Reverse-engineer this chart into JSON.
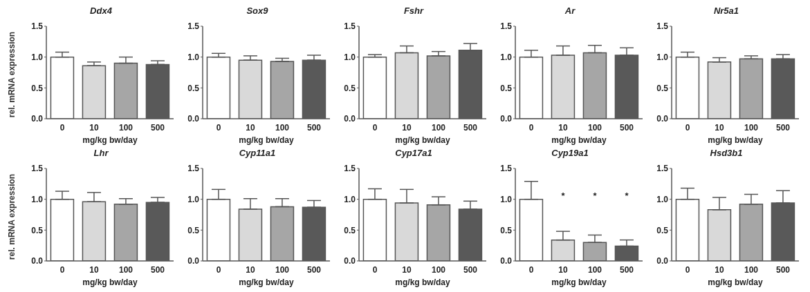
{
  "chart_data": [
    {
      "type": "bar",
      "title": "Ddx4",
      "categories": [
        "0",
        "10",
        "100",
        "500"
      ],
      "values": [
        1.0,
        0.86,
        0.9,
        0.88
      ],
      "errors": [
        [
          1.0,
          1.08
        ],
        [
          0.86,
          0.92
        ],
        [
          0.9,
          1.0
        ],
        [
          0.88,
          0.94
        ]
      ],
      "colors": [
        "#ffffff",
        "#d9d9d9",
        "#a6a6a6",
        "#595959"
      ],
      "ylim": [
        0,
        1.5
      ],
      "yticks": [
        {
          "value": 0,
          "label": "0.0"
        },
        {
          "value": 0.5,
          "label": "0.5"
        },
        {
          "value": 1,
          "label": "1.0"
        },
        {
          "value": 1.5,
          "label": "1.5"
        }
      ],
      "xlabel": "mg/kg bw/day",
      "ylabel": "rel. mRNA expression"
    },
    {
      "type": "bar",
      "title": "Sox9",
      "categories": [
        "0",
        "10",
        "100",
        "500"
      ],
      "values": [
        1.0,
        0.95,
        0.93,
        0.95
      ],
      "errors": [
        [
          1.0,
          1.06
        ],
        [
          0.95,
          1.02
        ],
        [
          0.93,
          0.98
        ],
        [
          0.95,
          1.03
        ]
      ],
      "colors": [
        "#ffffff",
        "#d9d9d9",
        "#a6a6a6",
        "#595959"
      ],
      "ylim": [
        0,
        1.5
      ],
      "yticks": [
        {
          "value": 0,
          "label": "0.0"
        },
        {
          "value": 0.5,
          "label": "0.5"
        },
        {
          "value": 1,
          "label": "1.0"
        },
        {
          "value": 1.5,
          "label": "1.5"
        }
      ],
      "xlabel": "mg/kg bw/day"
    },
    {
      "type": "bar",
      "title": "Fshr",
      "categories": [
        "0",
        "10",
        "100",
        "500"
      ],
      "values": [
        1.0,
        1.07,
        1.02,
        1.11
      ],
      "errors": [
        [
          1.0,
          1.04
        ],
        [
          1.07,
          1.18
        ],
        [
          1.02,
          1.09
        ],
        [
          1.11,
          1.22
        ]
      ],
      "colors": [
        "#ffffff",
        "#d9d9d9",
        "#a6a6a6",
        "#595959"
      ],
      "ylim": [
        0,
        1.5
      ],
      "yticks": [
        {
          "value": 0,
          "label": "0.0"
        },
        {
          "value": 0.5,
          "label": "0.5"
        },
        {
          "value": 1,
          "label": "1.0"
        },
        {
          "value": 1.5,
          "label": "1.5"
        }
      ],
      "xlabel": "mg/kg bw/day"
    },
    {
      "type": "bar",
      "title": "Ar",
      "categories": [
        "0",
        "10",
        "100",
        "500"
      ],
      "values": [
        1.0,
        1.03,
        1.07,
        1.03
      ],
      "errors": [
        [
          1.0,
          1.11
        ],
        [
          1.03,
          1.18
        ],
        [
          1.07,
          1.19
        ],
        [
          1.03,
          1.15
        ]
      ],
      "colors": [
        "#ffffff",
        "#d9d9d9",
        "#a6a6a6",
        "#595959"
      ],
      "ylim": [
        0,
        1.5
      ],
      "yticks": [
        {
          "value": 0,
          "label": "0.0"
        },
        {
          "value": 0.5,
          "label": "0.5"
        },
        {
          "value": 1,
          "label": "1.0"
        },
        {
          "value": 1.5,
          "label": "1.5"
        }
      ],
      "xlabel": "mg/kg bw/day"
    },
    {
      "type": "bar",
      "title": "Nr5a1",
      "categories": [
        "0",
        "10",
        "100",
        "500"
      ],
      "values": [
        1.0,
        0.92,
        0.97,
        0.97
      ],
      "errors": [
        [
          1.0,
          1.08
        ],
        [
          0.92,
          0.99
        ],
        [
          0.97,
          1.02
        ],
        [
          0.97,
          1.04
        ]
      ],
      "colors": [
        "#ffffff",
        "#d9d9d9",
        "#a6a6a6",
        "#595959"
      ],
      "ylim": [
        0,
        1.5
      ],
      "yticks": [
        {
          "value": 0,
          "label": "0.0"
        },
        {
          "value": 0.5,
          "label": "0.5"
        },
        {
          "value": 1,
          "label": "1.0"
        },
        {
          "value": 1.5,
          "label": "1.5"
        }
      ],
      "xlabel": "mg/kg bw/day"
    },
    {
      "type": "bar",
      "title": "Lhr",
      "categories": [
        "0",
        "10",
        "100",
        "500"
      ],
      "values": [
        1.0,
        0.96,
        0.92,
        0.95
      ],
      "errors": [
        [
          1.0,
          1.13
        ],
        [
          0.96,
          1.11
        ],
        [
          0.92,
          1.01
        ],
        [
          0.95,
          1.03
        ]
      ],
      "colors": [
        "#ffffff",
        "#d9d9d9",
        "#a6a6a6",
        "#595959"
      ],
      "ylim": [
        0,
        1.5
      ],
      "yticks": [
        {
          "value": 0,
          "label": "0.0"
        },
        {
          "value": 0.5,
          "label": "0.5"
        },
        {
          "value": 1,
          "label": "1.0"
        },
        {
          "value": 1.5,
          "label": "1.5"
        }
      ],
      "xlabel": "mg/kg bw/day",
      "ylabel": "rel. mRNA expression"
    },
    {
      "type": "bar",
      "title": "Cyp11a1",
      "categories": [
        "0",
        "10",
        "100",
        "500"
      ],
      "values": [
        1.0,
        0.84,
        0.88,
        0.87
      ],
      "errors": [
        [
          1.0,
          1.16
        ],
        [
          0.84,
          1.01
        ],
        [
          0.88,
          1.01
        ],
        [
          0.87,
          0.98
        ]
      ],
      "colors": [
        "#ffffff",
        "#d9d9d9",
        "#a6a6a6",
        "#595959"
      ],
      "ylim": [
        0,
        1.5
      ],
      "yticks": [
        {
          "value": 0,
          "label": "0.0"
        },
        {
          "value": 0.5,
          "label": "0.5"
        },
        {
          "value": 1,
          "label": "1.0"
        },
        {
          "value": 1.5,
          "label": "1.5"
        }
      ],
      "xlabel": "mg/kg bw/day"
    },
    {
      "type": "bar",
      "title": "Cyp17a1",
      "categories": [
        "0",
        "10",
        "100",
        "500"
      ],
      "values": [
        1.0,
        0.94,
        0.91,
        0.84
      ],
      "errors": [
        [
          1.0,
          1.17
        ],
        [
          0.94,
          1.16
        ],
        [
          0.91,
          1.04
        ],
        [
          0.84,
          0.97
        ]
      ],
      "colors": [
        "#ffffff",
        "#d9d9d9",
        "#a6a6a6",
        "#595959"
      ],
      "ylim": [
        0,
        1.5
      ],
      "yticks": [
        {
          "value": 0,
          "label": "0.0"
        },
        {
          "value": 0.5,
          "label": "0.5"
        },
        {
          "value": 1,
          "label": "1.0"
        },
        {
          "value": 1.5,
          "label": "1.5"
        }
      ],
      "xlabel": "mg/kg bw/day"
    },
    {
      "type": "bar",
      "title": "Cyp19a1",
      "categories": [
        "0",
        "10",
        "100",
        "500"
      ],
      "values": [
        1.0,
        0.34,
        0.3,
        0.24
      ],
      "errors": [
        [
          1.0,
          1.29
        ],
        [
          0.34,
          0.48
        ],
        [
          0.3,
          0.42
        ],
        [
          0.24,
          0.34
        ]
      ],
      "colors": [
        "#ffffff",
        "#d9d9d9",
        "#a6a6a6",
        "#595959"
      ],
      "ylim": [
        0,
        1.5
      ],
      "yticks": [
        {
          "value": 0,
          "label": "0.0"
        },
        {
          "value": 0.5,
          "label": "0.5"
        },
        {
          "value": 1,
          "label": "1.0"
        },
        {
          "value": 1.5,
          "label": "1.5"
        }
      ],
      "xlabel": "mg/kg bw/day",
      "annotations": [
        "*",
        "*",
        "*"
      ]
    },
    {
      "type": "bar",
      "title": "Hsd3b1",
      "categories": [
        "0",
        "10",
        "100",
        "500"
      ],
      "values": [
        1.0,
        0.83,
        0.92,
        0.94
      ],
      "errors": [
        [
          1.0,
          1.18
        ],
        [
          0.83,
          1.03
        ],
        [
          0.92,
          1.08
        ],
        [
          0.94,
          1.14
        ]
      ],
      "colors": [
        "#ffffff",
        "#d9d9d9",
        "#a6a6a6",
        "#595959"
      ],
      "ylim": [
        0,
        1.5
      ],
      "yticks": [
        {
          "value": 0,
          "label": "0.0"
        },
        {
          "value": 0.5,
          "label": "0.5"
        },
        {
          "value": 1,
          "label": "1.0"
        },
        {
          "value": 1.5,
          "label": "1.5"
        }
      ],
      "xlabel": "mg/kg bw/day"
    }
  ]
}
